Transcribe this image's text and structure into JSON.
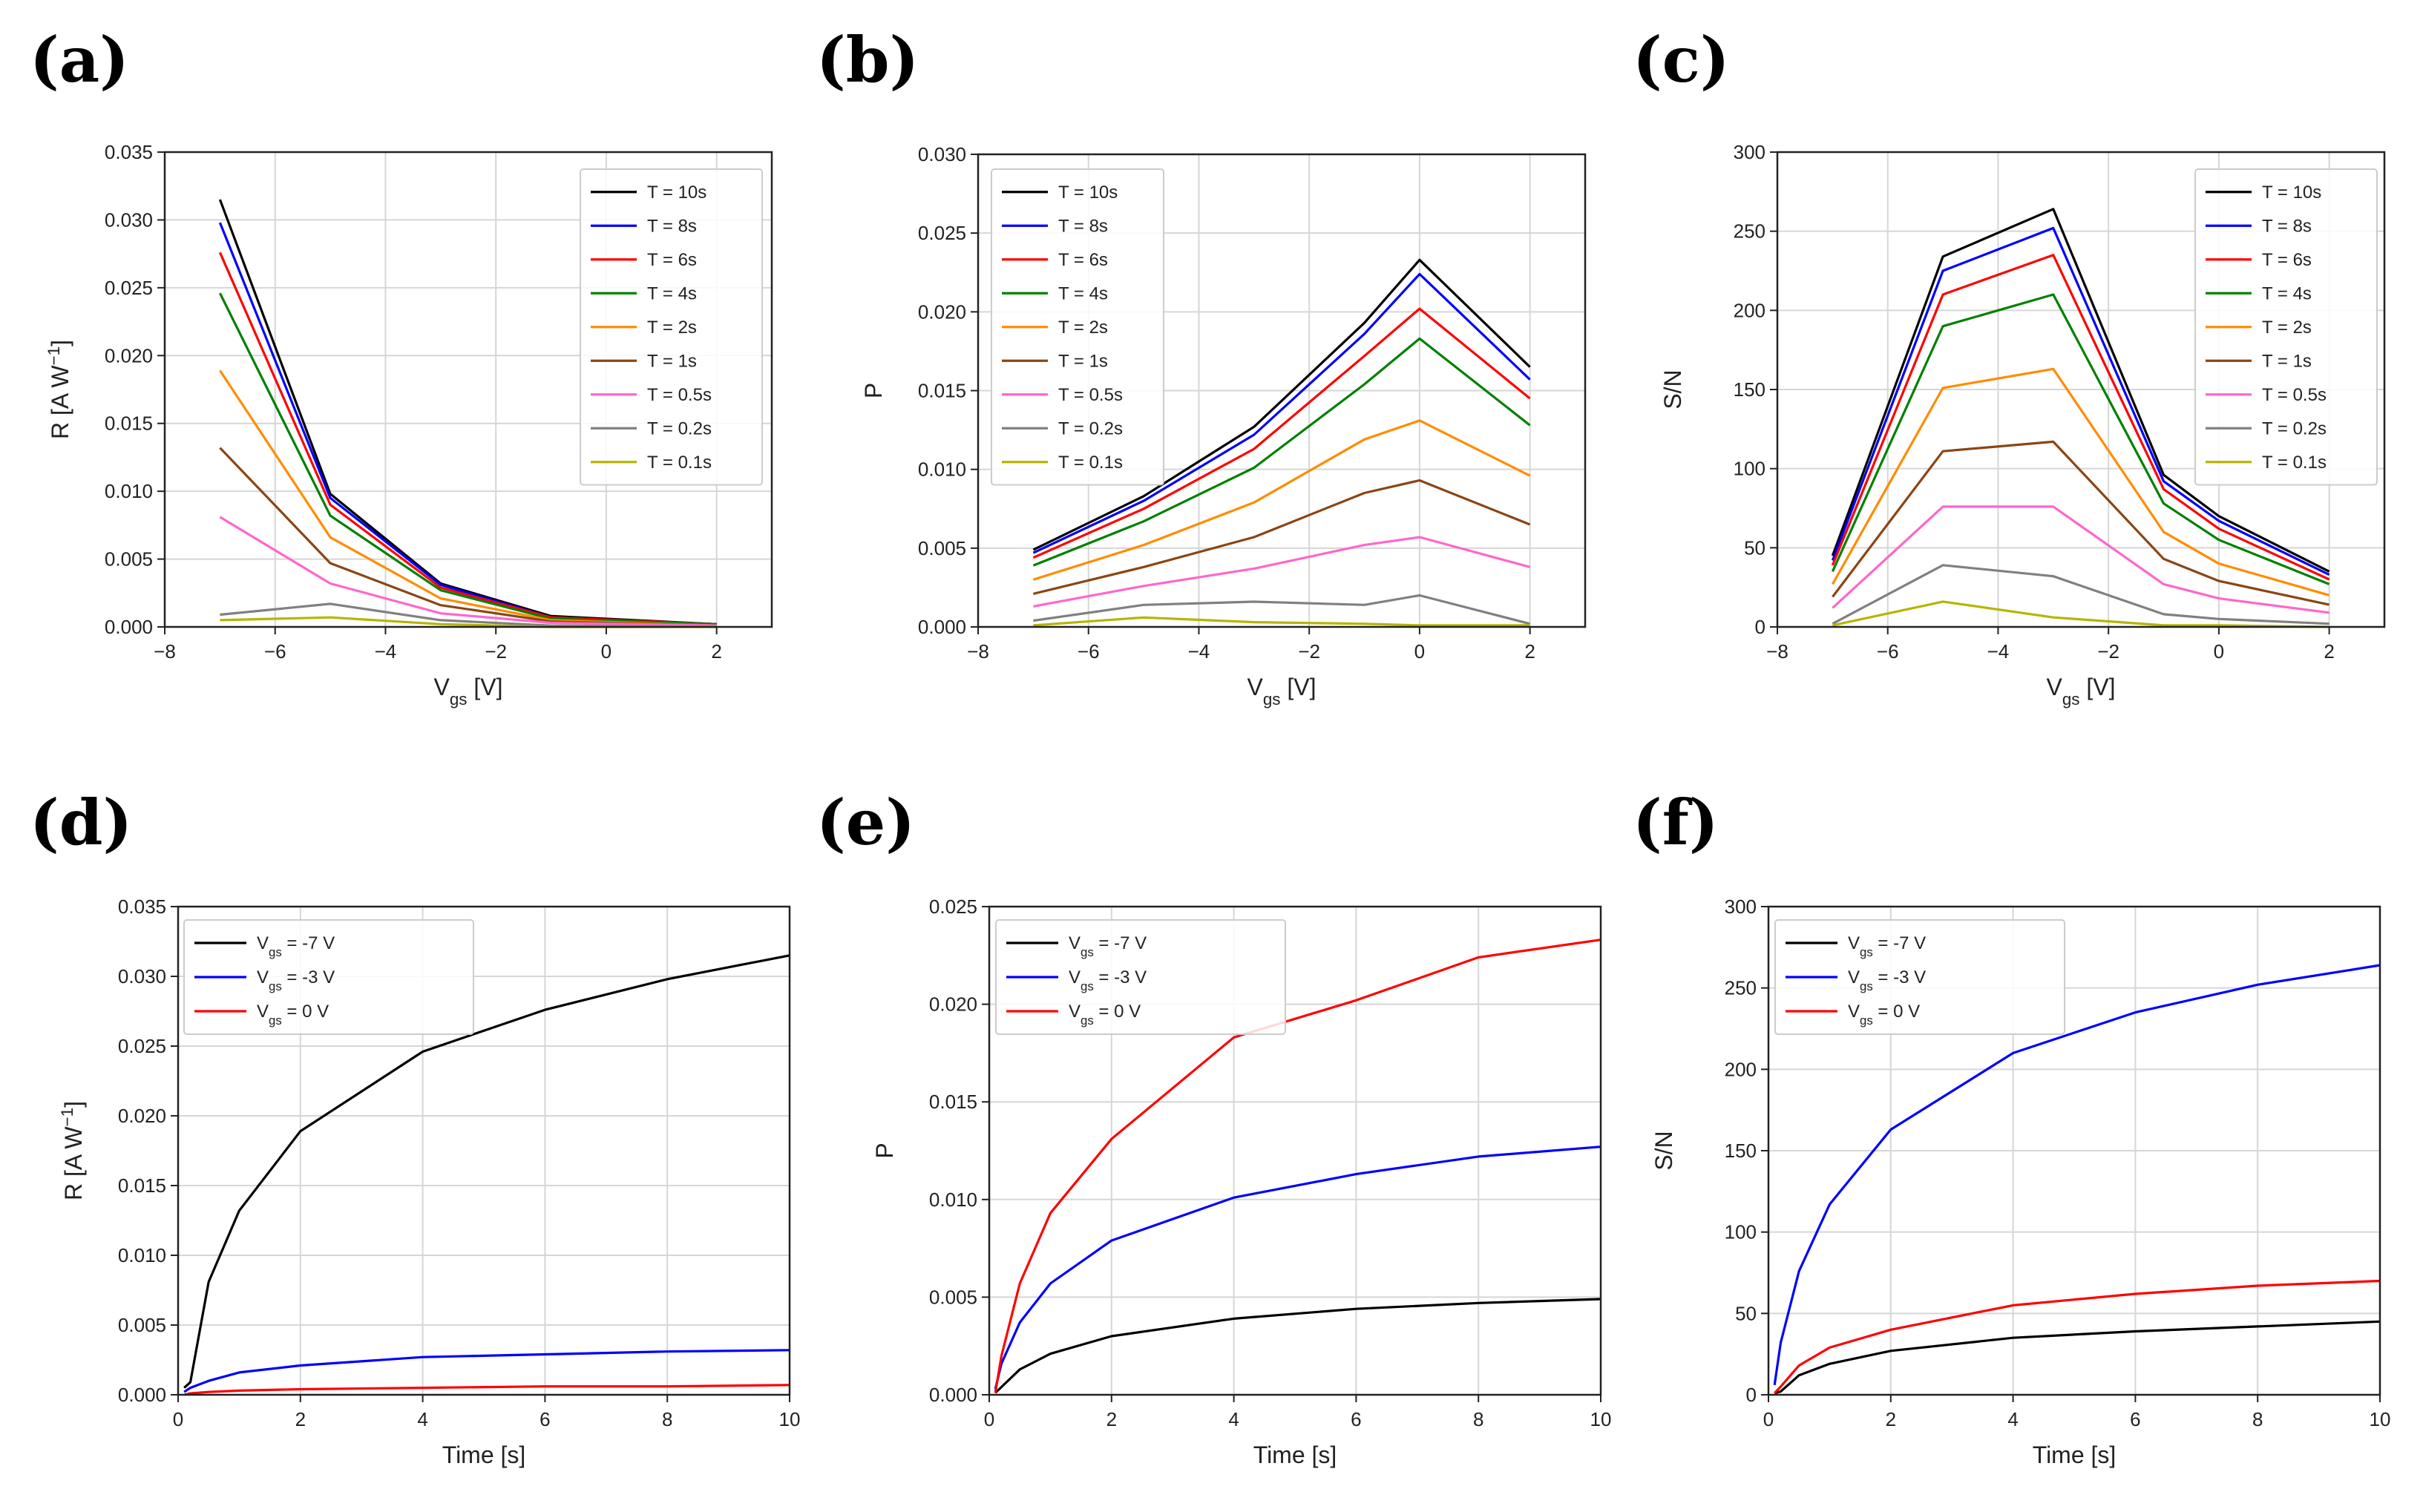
{
  "chart_data": [
    {
      "type": "line",
      "panel_label": "(a)",
      "xlabel": "V",
      "xlabel_sub": "gs",
      "xlabel_unit": " [V]",
      "ylabel": "R [A W",
      "ylabel_sup": "−1",
      "ylabel_end": "]",
      "xlim": [
        -8,
        3
      ],
      "ylim": [
        0,
        0.035
      ],
      "xticks": [
        -8,
        -6,
        -4,
        -2,
        0,
        2
      ],
      "xtick_labels": [
        "−8",
        "−6",
        "−4",
        "−2",
        "0",
        "2"
      ],
      "yticks": [
        0,
        0.005,
        0.01,
        0.015,
        0.02,
        0.025,
        0.03,
        0.035
      ],
      "ytick_labels": [
        "0.000",
        "0.005",
        "0.010",
        "0.015",
        "0.020",
        "0.025",
        "0.030",
        "0.035"
      ],
      "legend_position": "top-right",
      "grid": true,
      "x": [
        -7,
        -5,
        -3,
        -1,
        2
      ],
      "series": [
        {
          "name": "T = 10s",
          "color": "#000000",
          "values": [
            0.0315,
            0.0098,
            0.0032,
            0.0008,
            0.0002
          ]
        },
        {
          "name": "T = 8s",
          "color": "#0000ff",
          "values": [
            0.0298,
            0.0095,
            0.0031,
            0.0007,
            0.0002
          ]
        },
        {
          "name": "T = 6s",
          "color": "#ff0000",
          "values": [
            0.0276,
            0.009,
            0.0029,
            0.0007,
            0.0002
          ]
        },
        {
          "name": "T = 4s",
          "color": "#008000",
          "values": [
            0.0246,
            0.0082,
            0.0027,
            0.0006,
            0.0002
          ]
        },
        {
          "name": "T = 2s",
          "color": "#ff8c00",
          "values": [
            0.0189,
            0.0066,
            0.0021,
            0.0005,
            0.0001
          ]
        },
        {
          "name": "T = 1s",
          "color": "#8b4513",
          "values": [
            0.0132,
            0.0047,
            0.0016,
            0.0004,
            0.0001
          ]
        },
        {
          "name": "T = 0.5s",
          "color": "#ff66cc",
          "values": [
            0.0081,
            0.0032,
            0.001,
            0.0003,
            0.0001
          ]
        },
        {
          "name": "T = 0.2s",
          "color": "#808080",
          "values": [
            0.0009,
            0.0017,
            0.0005,
            0.0001,
            0.0
          ]
        },
        {
          "name": "T = 0.1s",
          "color": "#b5b500",
          "values": [
            0.0005,
            0.0007,
            0.0002,
            0.0,
            0.0
          ]
        }
      ]
    },
    {
      "type": "line",
      "panel_label": "(b)",
      "xlabel": "V",
      "xlabel_sub": "gs",
      "xlabel_unit": " [V]",
      "ylabel": "P",
      "xlim": [
        -8,
        3
      ],
      "ylim": [
        0,
        0.03
      ],
      "xticks": [
        -8,
        -6,
        -4,
        -2,
        0,
        2
      ],
      "xtick_labels": [
        "−8",
        "−6",
        "−4",
        "−2",
        "0",
        "2"
      ],
      "yticks": [
        0,
        0.005,
        0.01,
        0.015,
        0.02,
        0.025,
        0.03
      ],
      "ytick_labels": [
        "0.000",
        "0.005",
        "0.010",
        "0.015",
        "0.020",
        "0.025",
        "0.030"
      ],
      "legend_position": "top-left",
      "grid": true,
      "x": [
        -7,
        -5,
        -3,
        -1,
        0,
        2
      ],
      "series": [
        {
          "name": "T = 10s",
          "color": "#000000",
          "values": [
            0.0049,
            0.0083,
            0.0127,
            0.0193,
            0.0233,
            0.0165
          ]
        },
        {
          "name": "T = 8s",
          "color": "#0000ff",
          "values": [
            0.0047,
            0.008,
            0.0122,
            0.0186,
            0.0224,
            0.0157
          ]
        },
        {
          "name": "T = 6s",
          "color": "#ff0000",
          "values": [
            0.0044,
            0.0075,
            0.0113,
            0.0172,
            0.0202,
            0.0145
          ]
        },
        {
          "name": "T = 4s",
          "color": "#008000",
          "values": [
            0.0039,
            0.0067,
            0.0101,
            0.0154,
            0.0183,
            0.0128
          ]
        },
        {
          "name": "T = 2s",
          "color": "#ff8c00",
          "values": [
            0.003,
            0.0052,
            0.0079,
            0.0119,
            0.0131,
            0.0096
          ]
        },
        {
          "name": "T = 1s",
          "color": "#8b4513",
          "values": [
            0.0021,
            0.0038,
            0.0057,
            0.0085,
            0.0093,
            0.0065
          ]
        },
        {
          "name": "T = 0.5s",
          "color": "#ff66cc",
          "values": [
            0.0013,
            0.0026,
            0.0037,
            0.0052,
            0.0057,
            0.0038
          ]
        },
        {
          "name": "T = 0.2s",
          "color": "#808080",
          "values": [
            0.0004,
            0.0014,
            0.0016,
            0.0014,
            0.002,
            0.0002
          ]
        },
        {
          "name": "T = 0.1s",
          "color": "#b5b500",
          "values": [
            0.0001,
            0.0006,
            0.0003,
            0.0002,
            0.0001,
            0.0001
          ]
        }
      ]
    },
    {
      "type": "line",
      "panel_label": "(c)",
      "xlabel": "V",
      "xlabel_sub": "gs",
      "xlabel_unit": " [V]",
      "ylabel": "S/N",
      "xlim": [
        -8,
        3
      ],
      "ylim": [
        0,
        300
      ],
      "xticks": [
        -8,
        -6,
        -4,
        -2,
        0,
        2
      ],
      "xtick_labels": [
        "−8",
        "−6",
        "−4",
        "−2",
        "0",
        "2"
      ],
      "yticks": [
        0,
        50,
        100,
        150,
        200,
        250,
        300
      ],
      "ytick_labels": [
        "0",
        "50",
        "100",
        "150",
        "200",
        "250",
        "300"
      ],
      "legend_position": "top-right",
      "grid": true,
      "x": [
        -7,
        -5,
        -3,
        -1,
        0,
        2
      ],
      "series": [
        {
          "name": "T = 10s",
          "color": "#000000",
          "values": [
            45,
            234,
            264,
            96,
            70,
            35
          ]
        },
        {
          "name": "T = 8s",
          "color": "#0000ff",
          "values": [
            42,
            225,
            252,
            92,
            67,
            33
          ]
        },
        {
          "name": "T = 6s",
          "color": "#ff0000",
          "values": [
            39,
            210,
            235,
            87,
            62,
            30
          ]
        },
        {
          "name": "T = 4s",
          "color": "#008000",
          "values": [
            35,
            190,
            210,
            78,
            55,
            27
          ]
        },
        {
          "name": "T = 2s",
          "color": "#ff8c00",
          "values": [
            27,
            151,
            163,
            60,
            40,
            20
          ]
        },
        {
          "name": "T = 1s",
          "color": "#8b4513",
          "values": [
            19,
            111,
            117,
            43,
            29,
            14
          ]
        },
        {
          "name": "T = 0.5s",
          "color": "#ff66cc",
          "values": [
            12,
            76,
            76,
            27,
            18,
            9
          ]
        },
        {
          "name": "T = 0.2s",
          "color": "#808080",
          "values": [
            2,
            39,
            32,
            8,
            5,
            2
          ]
        },
        {
          "name": "T = 0.1s",
          "color": "#b5b500",
          "values": [
            1,
            16,
            6,
            1,
            1,
            0
          ]
        }
      ]
    },
    {
      "type": "line",
      "panel_label": "(d)",
      "xlabel": "Time [s]",
      "ylabel": "R [A W",
      "ylabel_sup": "−1",
      "ylabel_end": "]",
      "xlim": [
        0,
        10
      ],
      "ylim": [
        0,
        0.035
      ],
      "xticks": [
        0,
        2,
        4,
        6,
        8,
        10
      ],
      "xtick_labels": [
        "0",
        "2",
        "4",
        "6",
        "8",
        "10"
      ],
      "yticks": [
        0,
        0.005,
        0.01,
        0.015,
        0.02,
        0.025,
        0.03,
        0.035
      ],
      "ytick_labels": [
        "0.000",
        "0.005",
        "0.010",
        "0.015",
        "0.020",
        "0.025",
        "0.030",
        "0.035"
      ],
      "legend_position": "top-left",
      "grid": true,
      "x": [
        0.1,
        0.2,
        0.5,
        1,
        2,
        4,
        6,
        8,
        10
      ],
      "series": [
        {
          "name": "V",
          "name_sub": "gs",
          "name_end": " = -7 V",
          "color": "#000000",
          "values": [
            0.0005,
            0.0009,
            0.0081,
            0.0132,
            0.0189,
            0.0246,
            0.0276,
            0.0298,
            0.0315
          ]
        },
        {
          "name": "V",
          "name_sub": "gs",
          "name_end": " = -3 V",
          "color": "#0000ff",
          "values": [
            0.0002,
            0.0005,
            0.001,
            0.0016,
            0.0021,
            0.0027,
            0.0029,
            0.0031,
            0.0032
          ]
        },
        {
          "name": "V",
          "name_sub": "gs",
          "name_end": " = 0 V",
          "color": "#ff0000",
          "values": [
            0.0,
            0.0001,
            0.0002,
            0.0003,
            0.0004,
            0.0005,
            0.0006,
            0.0006,
            0.0007
          ]
        }
      ]
    },
    {
      "type": "line",
      "panel_label": "(e)",
      "xlabel": "Time [s]",
      "ylabel": "P",
      "xlim": [
        0,
        10
      ],
      "ylim": [
        0,
        0.025
      ],
      "xticks": [
        0,
        2,
        4,
        6,
        8,
        10
      ],
      "xtick_labels": [
        "0",
        "2",
        "4",
        "6",
        "8",
        "10"
      ],
      "yticks": [
        0,
        0.005,
        0.01,
        0.015,
        0.02,
        0.025
      ],
      "ytick_labels": [
        "0.000",
        "0.005",
        "0.010",
        "0.015",
        "0.020",
        "0.025"
      ],
      "legend_position": "top-left",
      "grid": true,
      "x": [
        0.1,
        0.2,
        0.5,
        1,
        2,
        4,
        6,
        8,
        10
      ],
      "series": [
        {
          "name": "V",
          "name_sub": "gs",
          "name_end": " = -7 V",
          "color": "#000000",
          "values": [
            0.0001,
            0.0004,
            0.0013,
            0.0021,
            0.003,
            0.0039,
            0.0044,
            0.0047,
            0.0049
          ]
        },
        {
          "name": "V",
          "name_sub": "gs",
          "name_end": " = -3 V",
          "color": "#0000ff",
          "values": [
            0.0003,
            0.0016,
            0.0037,
            0.0057,
            0.0079,
            0.0101,
            0.0113,
            0.0122,
            0.0127
          ]
        },
        {
          "name": "V",
          "name_sub": "gs",
          "name_end": " = 0 V",
          "color": "#ff0000",
          "values": [
            0.0001,
            0.002,
            0.0057,
            0.0093,
            0.0131,
            0.0183,
            0.0202,
            0.0224,
            0.0233
          ]
        }
      ]
    },
    {
      "type": "line",
      "panel_label": "(f)",
      "xlabel": "Time [s]",
      "ylabel": "S/N",
      "xlim": [
        0,
        10
      ],
      "ylim": [
        0,
        300
      ],
      "xticks": [
        0,
        2,
        4,
        6,
        8,
        10
      ],
      "xtick_labels": [
        "0",
        "2",
        "4",
        "6",
        "8",
        "10"
      ],
      "yticks": [
        0,
        50,
        100,
        150,
        200,
        250,
        300
      ],
      "ytick_labels": [
        "0",
        "50",
        "100",
        "150",
        "200",
        "250",
        "300"
      ],
      "legend_position": "top-left",
      "grid": true,
      "x": [
        0.1,
        0.2,
        0.5,
        1,
        2,
        4,
        6,
        8,
        10
      ],
      "series": [
        {
          "name": "V",
          "name_sub": "gs",
          "name_end": " = -7 V",
          "color": "#000000",
          "values": [
            1,
            2,
            12,
            19,
            27,
            35,
            39,
            42,
            45
          ]
        },
        {
          "name": "V",
          "name_sub": "gs",
          "name_end": " = -3 V",
          "color": "#0000ff",
          "values": [
            6,
            32,
            76,
            117,
            163,
            210,
            235,
            252,
            264
          ]
        },
        {
          "name": "V",
          "name_sub": "gs",
          "name_end": " = 0 V",
          "color": "#ff0000",
          "values": [
            1,
            5,
            18,
            29,
            40,
            55,
            62,
            67,
            70
          ]
        }
      ]
    }
  ]
}
